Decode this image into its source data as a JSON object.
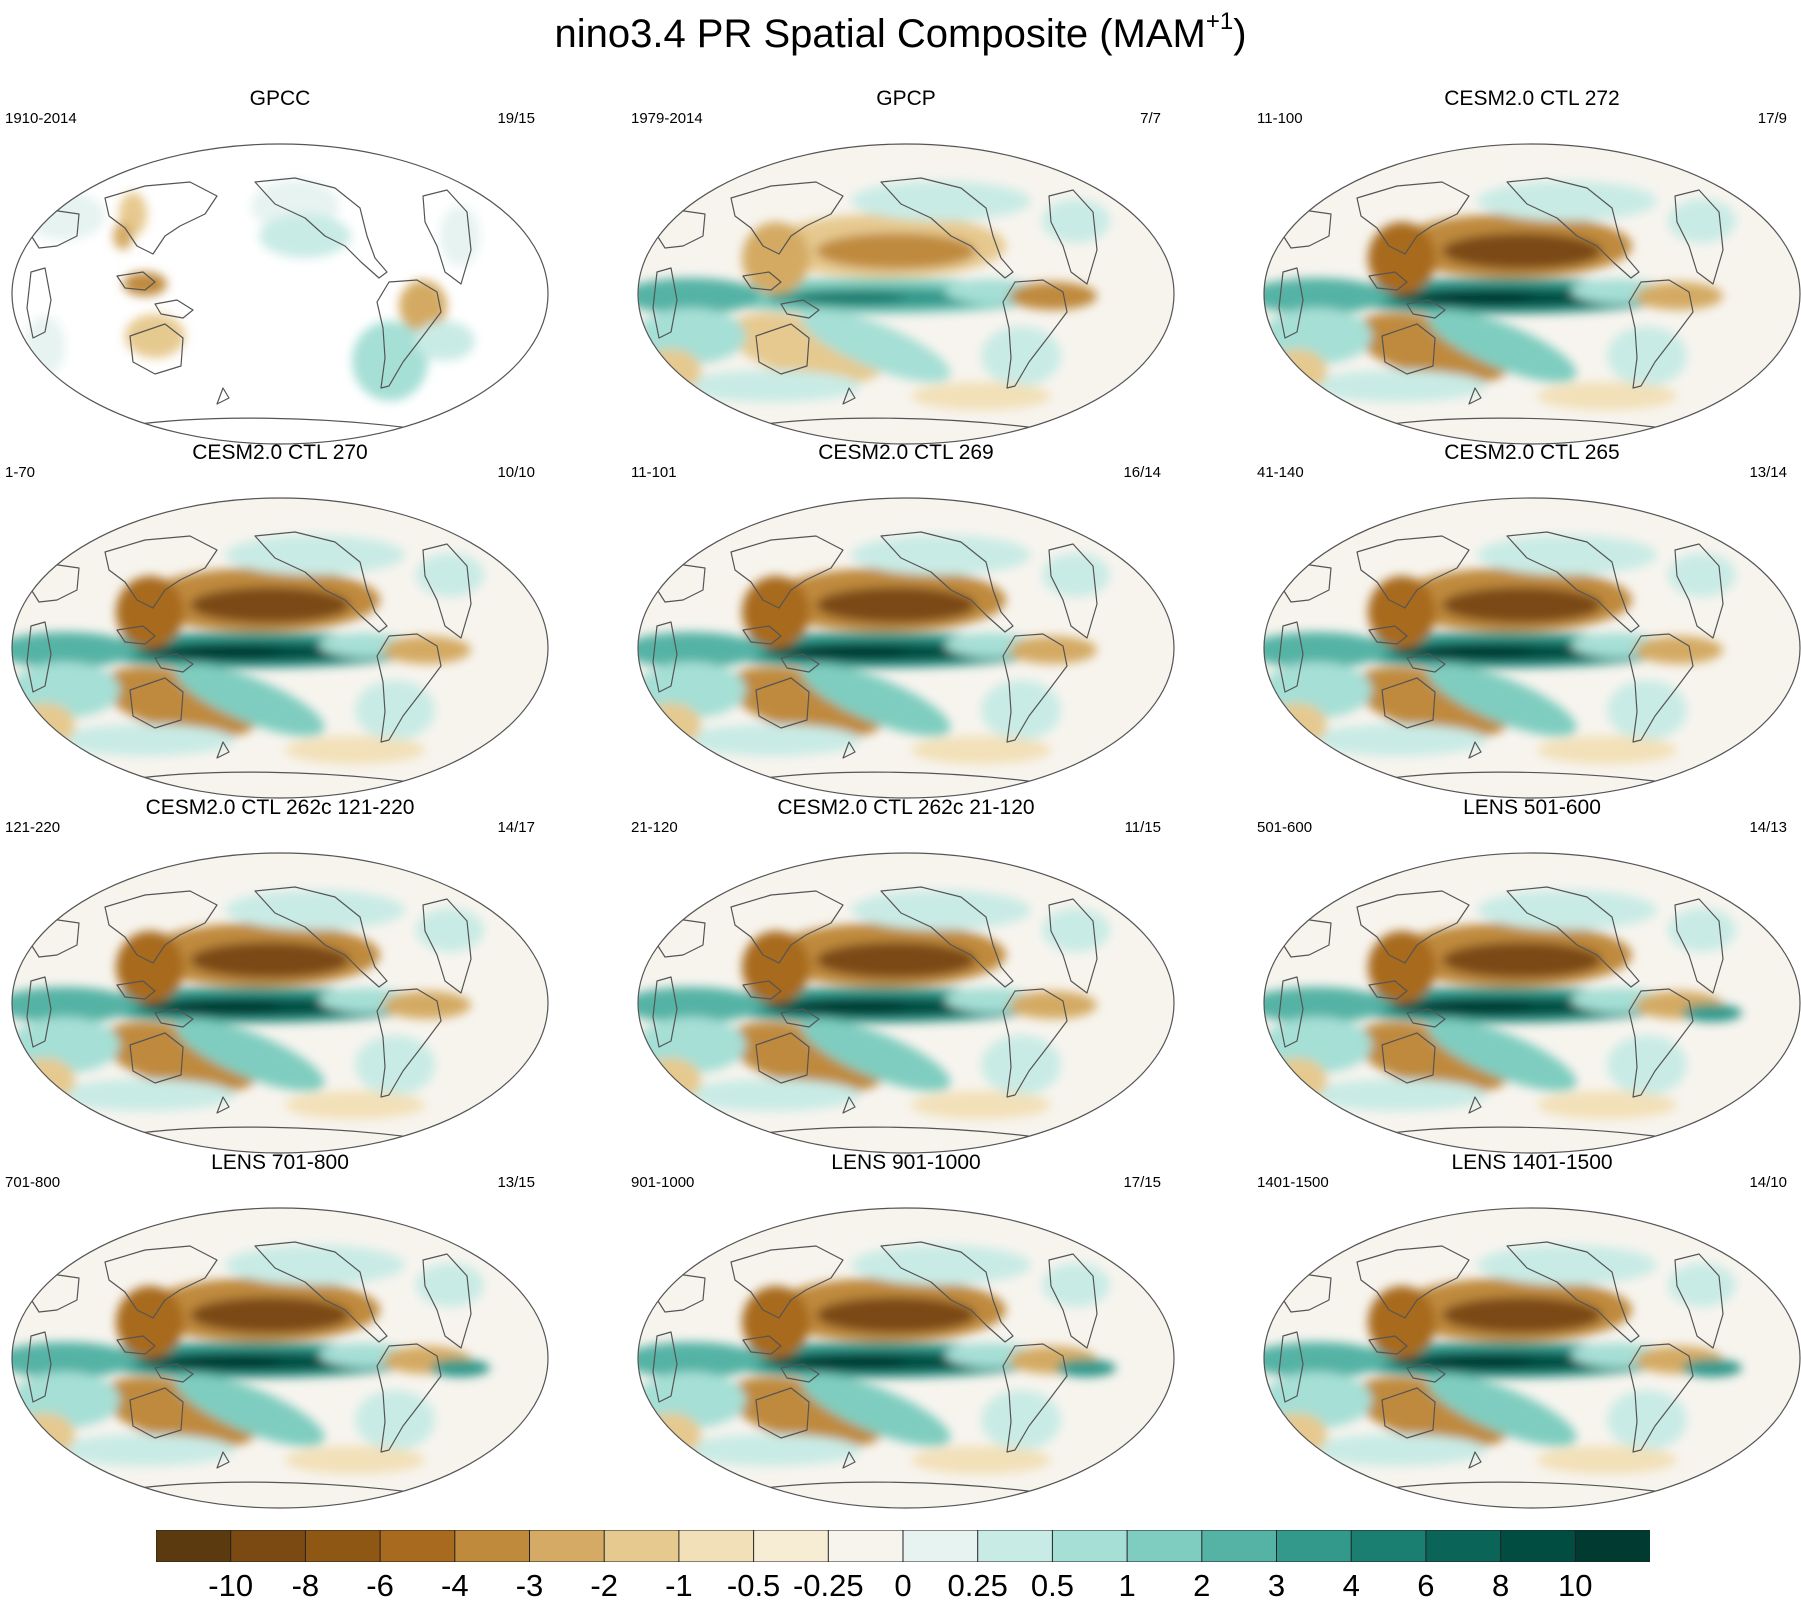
{
  "title": {
    "main": "nino3.4 PR Spatial Composite (MAM",
    "superscript": "+1",
    "close": ")"
  },
  "panels": [
    {
      "title": "GPCC",
      "period": "1910-2014",
      "counts": "19/15",
      "type": "obs-land"
    },
    {
      "title": "GPCP",
      "period": "1979-2014",
      "counts": "7/7",
      "type": "obs"
    },
    {
      "title": "CESM2.0 CTL 272",
      "period": "11-100",
      "counts": "17/9",
      "type": "model"
    },
    {
      "title": "CESM2.0 CTL 270",
      "period": "1-70",
      "counts": "10/10",
      "type": "model"
    },
    {
      "title": "CESM2.0 CTL 269",
      "period": "11-101",
      "counts": "16/14",
      "type": "model"
    },
    {
      "title": "CESM2.0 CTL 265",
      "period": "41-140",
      "counts": "13/14",
      "type": "model"
    },
    {
      "title": "CESM2.0 CTL 262c 121-220",
      "period": "121-220",
      "counts": "14/17",
      "type": "model"
    },
    {
      "title": "CESM2.0 CTL 262c 21-120",
      "period": "21-120",
      "counts": "11/15",
      "type": "model"
    },
    {
      "title": "LENS 501-600",
      "period": "501-600",
      "counts": "14/13",
      "type": "lens"
    },
    {
      "title": "LENS 701-800",
      "period": "701-800",
      "counts": "13/15",
      "type": "lens"
    },
    {
      "title": "LENS 901-1000",
      "period": "901-1000",
      "counts": "17/15",
      "type": "lens"
    },
    {
      "title": "LENS 1401-1500",
      "period": "1401-1500",
      "counts": "14/10",
      "type": "lens"
    }
  ],
  "colorbar": {
    "labels": [
      "-10",
      "-8",
      "-6",
      "-4",
      "-3",
      "-2",
      "-1",
      "-0.5",
      "-0.25",
      "0",
      "0.25",
      "0.5",
      "1",
      "2",
      "3",
      "4",
      "6",
      "8",
      "10"
    ],
    "colors": [
      "#5c3a10",
      "#7a4a12",
      "#8f5714",
      "#a86a1f",
      "#bf8a3c",
      "#d4aa64",
      "#e6c98f",
      "#f2e0b8",
      "#f7ecd4",
      "#f7f4ee",
      "#e6f3f1",
      "#c9ebe5",
      "#a6dfd6",
      "#7fcdc0",
      "#54b3a5",
      "#32998b",
      "#1a7e70",
      "#0a6558",
      "#024d42",
      "#013a30"
    ]
  }
}
